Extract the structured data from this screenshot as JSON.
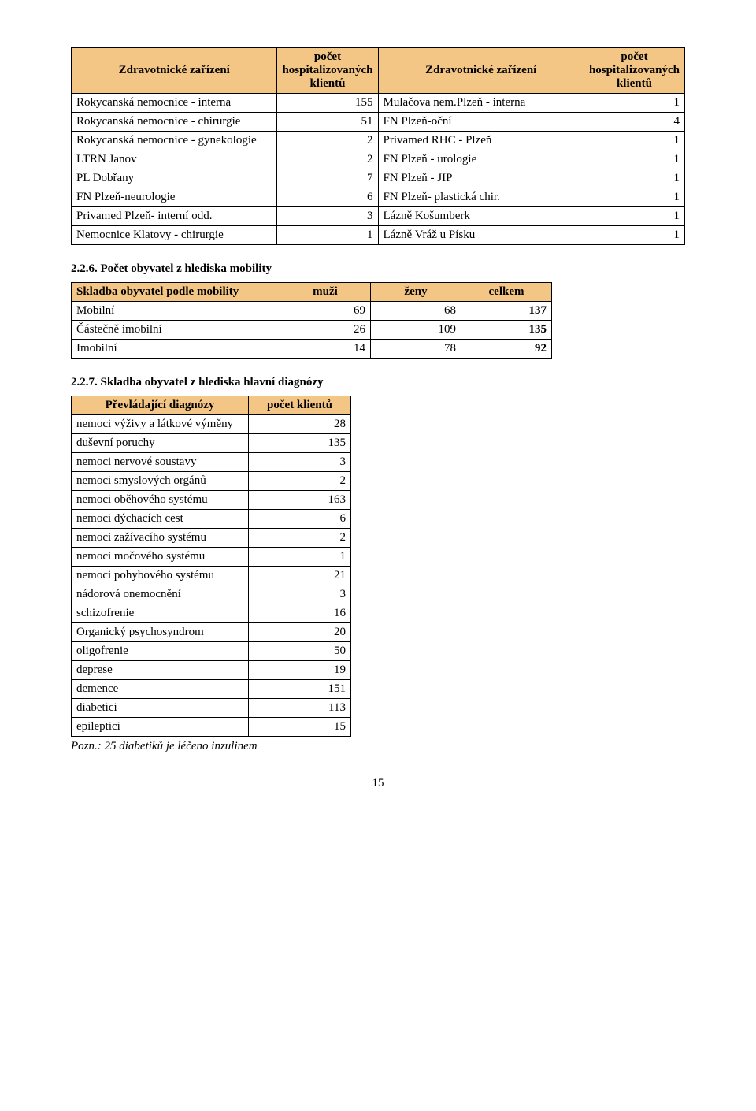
{
  "table1": {
    "headers": {
      "col1": "Zdravotnické zařízení",
      "col2": "počet hospitalizovaných klientů",
      "col3": "Zdravotnické zařízení",
      "col4": "počet hospitalizovaných klientů"
    },
    "rows": [
      [
        "Rokycanská nemocnice - interna",
        "155",
        "Mulačova nem.Plzeň - interna",
        "1"
      ],
      [
        "Rokycanská nemocnice - chirurgie",
        "51",
        "FN Plzeň-oční",
        "4"
      ],
      [
        "Rokycanská nemocnice - gynekologie",
        "2",
        "Privamed RHC - Plzeň",
        "1"
      ],
      [
        "LTRN Janov",
        "2",
        "FN Plzeň - urologie",
        "1"
      ],
      [
        "PL Dobřany",
        "7",
        "FN Plzeň - JIP",
        "1"
      ],
      [
        "FN Plzeň-neurologie",
        "6",
        "FN Plzeň- plastická chir.",
        "1"
      ],
      [
        "Privamed Plzeň- interní odd.",
        "3",
        "Lázně Košumberk",
        "1"
      ],
      [
        "Nemocnice Klatovy - chirurgie",
        "1",
        "Lázně Vráž u Písku",
        "1"
      ]
    ],
    "col_widths": [
      "280",
      "105",
      "280",
      "105"
    ]
  },
  "section2": {
    "title": "2.2.6. Počet obyvatel z hlediska mobility",
    "headers": {
      "c1": "Skladba obyvatel podle mobility",
      "c2": "muži",
      "c3": "ženy",
      "c4": "celkem"
    },
    "rows": [
      [
        "Mobilní",
        "69",
        "68",
        "137"
      ],
      [
        "Částečně imobilní",
        "26",
        "109",
        "135"
      ],
      [
        "Imobilní",
        "14",
        "78",
        "92"
      ]
    ],
    "col_widths": [
      "265",
      "115",
      "115",
      "115"
    ]
  },
  "section3": {
    "title": "2.2.7. Skladba obyvatel z hlediska hlavní diagnózy",
    "headers": {
      "c1": "Převládající diagnózy",
      "c2": "počet klientů"
    },
    "rows": [
      [
        "nemoci výživy a látkové výměny",
        "28"
      ],
      [
        "duševní poruchy",
        "135"
      ],
      [
        "nemoci nervové soustavy",
        "3"
      ],
      [
        "nemoci smyslových orgánů",
        "2"
      ],
      [
        "nemoci oběhového systému",
        "163"
      ],
      [
        "nemoci dýchacích cest",
        "6"
      ],
      [
        "nemoci zažívacího systému",
        "2"
      ],
      [
        "nemoci močového systému",
        "1"
      ],
      [
        "nemoci pohybového systému",
        "21"
      ],
      [
        "nádorová onemocnění",
        "3"
      ],
      [
        "schizofrenie",
        "16"
      ],
      [
        "Organický psychosyndrom",
        "20"
      ],
      [
        "oligofrenie",
        "50"
      ],
      [
        "deprese",
        "19"
      ],
      [
        "demence",
        "151"
      ],
      [
        "diabetici",
        "113"
      ],
      [
        "epileptici",
        "15"
      ]
    ],
    "col_widths": [
      "225",
      "130"
    ],
    "footnote": "Pozn.: 25 diabetiků je léčeno inzulinem"
  },
  "page_number": "15"
}
